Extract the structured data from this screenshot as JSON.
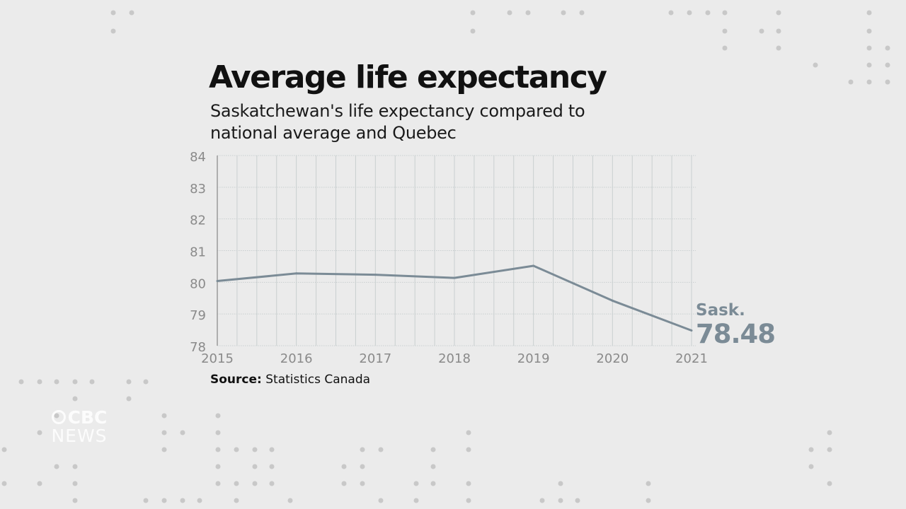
{
  "title": "Average life expectancy",
  "subtitle": "Saskatchewan's life expectancy compared to national average and Quebec",
  "source": {
    "label": "Source:",
    "text": "Statistics Canada"
  },
  "logo": {
    "line1": "CBC",
    "line2": "NEWS"
  },
  "colors": {
    "series": "#7b8b96",
    "grid": "#c9cfd0",
    "axis": "#8a8a8a",
    "text": "#111111"
  },
  "chart_data": {
    "type": "line",
    "title": "Average life expectancy",
    "x": [
      "2015",
      "2016",
      "2017",
      "2018",
      "2019",
      "2020",
      "2021"
    ],
    "ylim": [
      78,
      84
    ],
    "yticks": [
      84,
      83,
      82,
      81,
      80,
      79,
      78
    ],
    "grid": true,
    "series": [
      {
        "name": "Sask.",
        "values": [
          80.04,
          80.28,
          80.24,
          80.14,
          80.52,
          79.42,
          78.48
        ]
      }
    ],
    "annotations": [
      {
        "series": "Sask.",
        "label": "Sask.",
        "value_label": "78.48"
      }
    ]
  }
}
